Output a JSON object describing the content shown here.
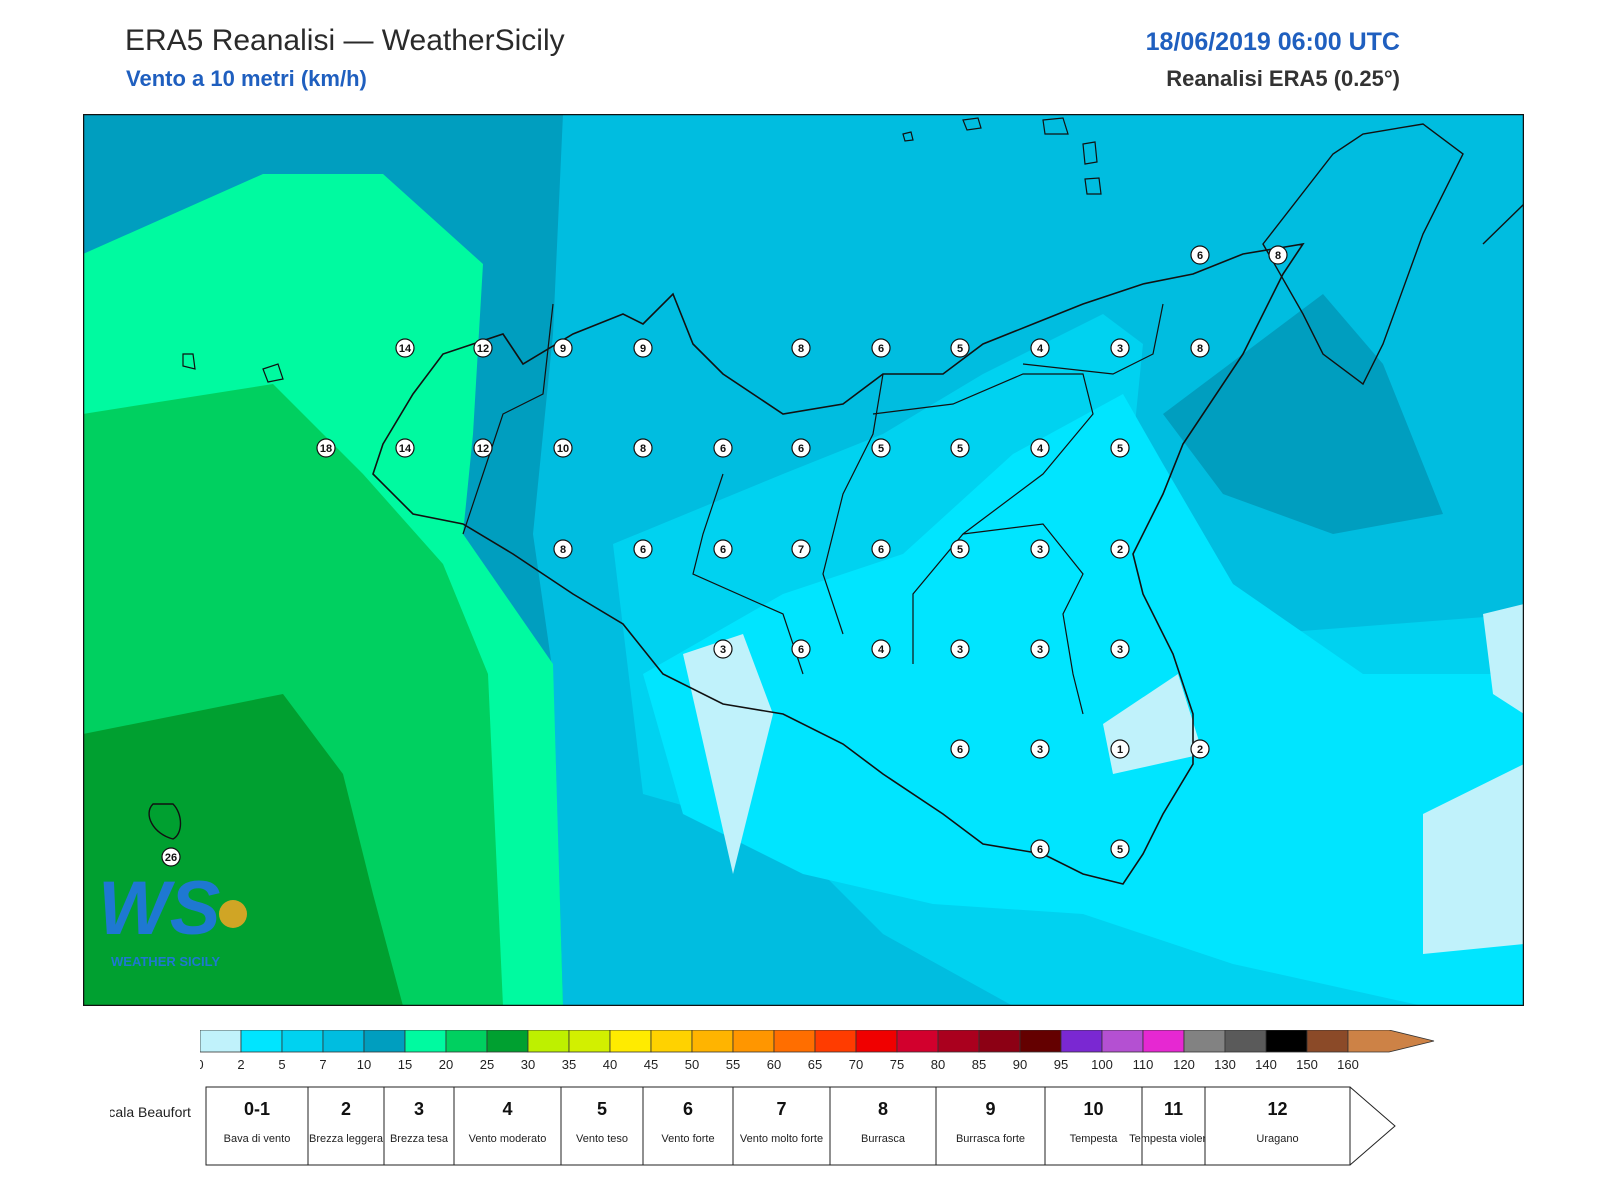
{
  "header": {
    "title": "ERA5 Reanalisi — WeatherSicily",
    "subtitle": "Vento a 10 metri (km/h)",
    "datetime": "18/06/2019 06:00 UTC",
    "dataset": "Reanalisi ERA5 (0.25°)"
  },
  "map": {
    "logo_letters": "WS",
    "logo_name": "WEATHER SICILY",
    "stations": [
      {
        "v": "14"
      },
      {
        "v": "12"
      },
      {
        "v": "9"
      },
      {
        "v": "9"
      },
      {
        "v": "8"
      },
      {
        "v": "6"
      },
      {
        "v": "5"
      },
      {
        "v": "4"
      },
      {
        "v": "3"
      },
      {
        "v": "8"
      },
      {
        "v": "18"
      },
      {
        "v": "14"
      },
      {
        "v": "12"
      },
      {
        "v": "10"
      },
      {
        "v": "8"
      },
      {
        "v": "6"
      },
      {
        "v": "6"
      },
      {
        "v": "5"
      },
      {
        "v": "5"
      },
      {
        "v": "4"
      },
      {
        "v": "5"
      },
      {
        "v": "8"
      },
      {
        "v": "6"
      },
      {
        "v": "6"
      },
      {
        "v": "7"
      },
      {
        "v": "6"
      },
      {
        "v": "5"
      },
      {
        "v": "3"
      },
      {
        "v": "2"
      },
      {
        "v": "3"
      },
      {
        "v": "6"
      },
      {
        "v": "4"
      },
      {
        "v": "3"
      },
      {
        "v": "3"
      },
      {
        "v": "3"
      },
      {
        "v": "6"
      },
      {
        "v": "3"
      },
      {
        "v": "1"
      },
      {
        "v": "2"
      },
      {
        "v": "6"
      },
      {
        "v": "5"
      },
      {
        "v": "6"
      },
      {
        "v": "8"
      },
      {
        "v": "26"
      }
    ]
  },
  "legend": {
    "ticks": [
      "0",
      "2",
      "5",
      "7",
      "10",
      "15",
      "20",
      "25",
      "30",
      "35",
      "40",
      "45",
      "50",
      "55",
      "60",
      "65",
      "70",
      "75",
      "80",
      "85",
      "90",
      "95",
      "100",
      "110",
      "120",
      "130",
      "140",
      "150",
      "160"
    ],
    "colors": [
      "#c0f2fb",
      "#00e5ff",
      "#00d2f0",
      "#00bde0",
      "#009ebf",
      "#00faa0",
      "#00d060",
      "#00a030",
      "#bef000",
      "#d2f000",
      "#ffeb00",
      "#ffd200",
      "#ffb400",
      "#ff9600",
      "#ff6e00",
      "#ff3c00",
      "#f00000",
      "#d2002d",
      "#aa001e",
      "#8c0014",
      "#640000",
      "#7a28d2",
      "#b450d2",
      "#e628d2",
      "#828282",
      "#5a5a5a",
      "#000000",
      "#8b4a28",
      "#cd8246"
    ],
    "beaufort_title": "Scala Beaufort",
    "beaufort": [
      {
        "n": "0-1",
        "label": "Bava di vento"
      },
      {
        "n": "2",
        "label": "Brezza leggera"
      },
      {
        "n": "3",
        "label": "Brezza tesa"
      },
      {
        "n": "4",
        "label": "Vento moderato"
      },
      {
        "n": "5",
        "label": "Vento teso"
      },
      {
        "n": "6",
        "label": "Vento forte"
      },
      {
        "n": "7",
        "label": "Vento molto forte"
      },
      {
        "n": "8",
        "label": "Burrasca"
      },
      {
        "n": "9",
        "label": "Burrasca forte"
      },
      {
        "n": "10",
        "label": "Tempesta"
      },
      {
        "n": "11",
        "label": "Tempesta violenta"
      },
      {
        "n": "12",
        "label": "Uragano"
      }
    ]
  }
}
